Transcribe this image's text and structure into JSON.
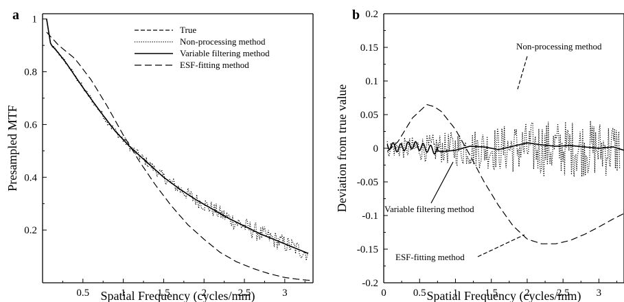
{
  "chart_data": [
    {
      "panel": "a",
      "type": "line",
      "xlabel": "Spatial Frequency (cycles/mm)",
      "ylabel": "Presampled MTF",
      "xlim": [
        0,
        3.35
      ],
      "ylim": [
        0,
        1.02
      ],
      "xticks": [
        "0.5",
        "1",
        "1.5",
        "2",
        "2.5",
        "3"
      ],
      "yticks": [
        "0.2",
        "0.4",
        "0.6",
        "0.8",
        "1"
      ],
      "legend_position": "top-right",
      "series": [
        {
          "name": "True",
          "style": "short-dash",
          "x": [
            0.05,
            0.1,
            0.2,
            0.3,
            0.5,
            0.7,
            0.9,
            1.1,
            1.3,
            1.5,
            1.7,
            1.9,
            2.1,
            2.3,
            2.5,
            2.7,
            2.9,
            3.1,
            3.3
          ],
          "y": [
            1.0,
            0.905,
            0.87,
            0.83,
            0.74,
            0.655,
            0.575,
            0.51,
            0.455,
            0.4,
            0.355,
            0.315,
            0.28,
            0.245,
            0.215,
            0.185,
            0.16,
            0.135,
            0.11
          ]
        },
        {
          "name": "Non-processing method",
          "style": "dotted",
          "x": [
            0.05,
            0.1,
            0.2,
            0.3,
            0.5,
            0.7,
            0.9,
            1.1,
            1.3,
            1.5,
            1.7,
            1.9,
            2.1,
            2.3,
            2.5,
            2.7,
            2.9,
            3.1,
            3.3
          ],
          "y": [
            1.0,
            0.905,
            0.87,
            0.83,
            0.74,
            0.655,
            0.575,
            0.51,
            0.455,
            0.4,
            0.355,
            0.315,
            0.28,
            0.245,
            0.215,
            0.185,
            0.16,
            0.135,
            0.11
          ]
        },
        {
          "name": "Variable filtering method",
          "style": "solid",
          "x": [
            0.05,
            0.1,
            0.2,
            0.3,
            0.5,
            0.7,
            0.9,
            1.1,
            1.3,
            1.5,
            1.7,
            1.9,
            2.1,
            2.3,
            2.5,
            2.7,
            2.9,
            3.1,
            3.3
          ],
          "y": [
            1.0,
            0.905,
            0.87,
            0.83,
            0.74,
            0.655,
            0.575,
            0.51,
            0.455,
            0.4,
            0.355,
            0.315,
            0.28,
            0.245,
            0.215,
            0.185,
            0.16,
            0.135,
            0.11
          ]
        },
        {
          "name": "ESF-fitting method",
          "style": "long-dash",
          "x": [
            0.05,
            0.2,
            0.4,
            0.6,
            0.8,
            1.0,
            1.2,
            1.4,
            1.6,
            1.8,
            2.0,
            2.2,
            2.4,
            2.6,
            2.8,
            3.0,
            3.2,
            3.35
          ],
          "y": [
            0.95,
            0.9,
            0.85,
            0.77,
            0.67,
            0.56,
            0.46,
            0.37,
            0.29,
            0.22,
            0.165,
            0.115,
            0.08,
            0.055,
            0.035,
            0.02,
            0.012,
            0.008
          ]
        }
      ]
    },
    {
      "panel": "b",
      "type": "line",
      "xlabel": "Spatial Frequency (cycles/mm)",
      "ylabel": "Deviation from true value",
      "xlim": [
        0,
        3.35
      ],
      "ylim": [
        -0.2,
        0.2
      ],
      "xticks": [
        "0",
        "0.5",
        "1",
        "1.5",
        "2",
        "2.5",
        "3"
      ],
      "yticks": [
        "-0.2",
        "-0.15",
        "-0.1",
        "-0.05",
        "0",
        "0.05",
        "0.1",
        "0.15",
        "0.2"
      ],
      "series": [
        {
          "name": "Non-processing method",
          "style": "dotted",
          "x": [
            0.05,
            0.3,
            0.6,
            0.9,
            1.2,
            1.5,
            1.8,
            2.1,
            2.4,
            2.7,
            3.0,
            3.3
          ],
          "y": [
            0.0,
            0.0,
            0.0,
            0.0,
            0.0,
            0.0,
            0.0,
            0.0,
            0.0,
            0.0,
            0.0,
            0.0
          ]
        },
        {
          "name": "Variable filtering method",
          "style": "solid",
          "x": [
            0.05,
            0.2,
            0.4,
            0.6,
            0.8,
            1.0,
            1.2,
            1.4,
            1.6,
            1.8,
            2.0,
            2.2,
            2.4,
            2.6,
            2.8,
            3.0,
            3.2,
            3.35
          ],
          "y": [
            0.005,
            0.0,
            0.005,
            0.0,
            -0.005,
            -0.003,
            0.003,
            0.002,
            -0.002,
            0.003,
            0.008,
            0.005,
            0.003,
            0.004,
            0.002,
            0.0,
            0.002,
            -0.003
          ]
        },
        {
          "name": "ESF-fitting method",
          "style": "long-dash",
          "x": [
            0.05,
            0.2,
            0.4,
            0.6,
            0.7,
            0.8,
            1.0,
            1.2,
            1.4,
            1.6,
            1.8,
            2.0,
            2.2,
            2.4,
            2.6,
            2.8,
            3.0,
            3.2,
            3.35
          ],
          "y": [
            -0.005,
            0.01,
            0.045,
            0.065,
            0.062,
            0.055,
            0.028,
            -0.01,
            -0.05,
            -0.085,
            -0.115,
            -0.135,
            -0.142,
            -0.142,
            -0.137,
            -0.128,
            -0.117,
            -0.105,
            -0.097
          ]
        }
      ],
      "annotations": [
        {
          "text": "Non-processing method",
          "x": 1.85,
          "y": 0.125
        },
        {
          "text": "Variable filtering method",
          "x": 0.85,
          "y": -0.1
        },
        {
          "text": "ESF-fitting method",
          "x": 1.55,
          "y": -0.16
        }
      ]
    }
  ]
}
